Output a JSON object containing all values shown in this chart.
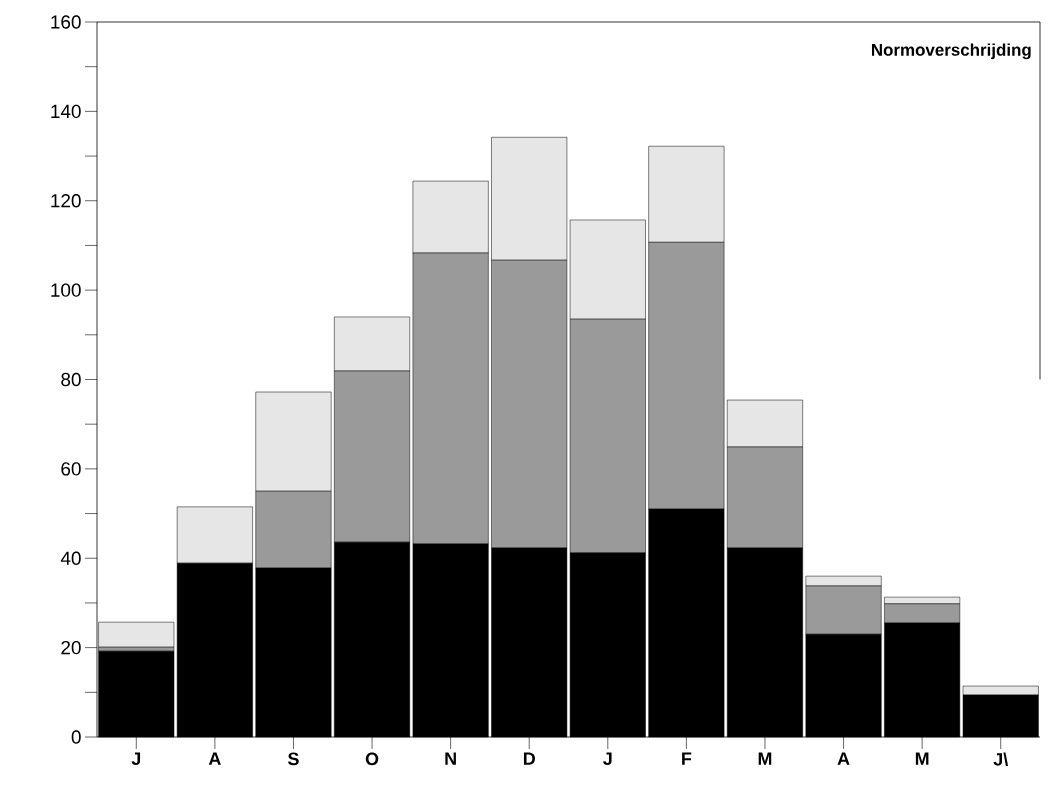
{
  "chart_data": {
    "type": "bar",
    "stacked": true,
    "categories": [
      "J",
      "A",
      "S",
      "O",
      "N",
      "D",
      "J",
      "F",
      "M",
      "A",
      "M",
      "J\\"
    ],
    "series": [
      {
        "color": "#000000",
        "values": [
          19.2,
          38.9,
          37.8,
          43.6,
          43.2,
          42.3,
          41.2,
          51.0,
          42.3,
          23.0,
          25.5,
          9.4
        ]
      },
      {
        "color": "#9a9a9a",
        "values": [
          0.9,
          0,
          17.2,
          38.3,
          65.1,
          64.4,
          52.3,
          59.7,
          22.6,
          10.8,
          4.3,
          0
        ]
      },
      {
        "color": "#e6e6e6",
        "values": [
          5.6,
          12.6,
          22.2,
          12.1,
          16.1,
          27.5,
          22.2,
          21.5,
          10.5,
          2.2,
          1.5,
          2.0
        ]
      }
    ],
    "ylim": [
      0,
      160
    ],
    "yticks": [
      0,
      {
        "value": 10,
        "label": null
      },
      20,
      {
        "value": 30,
        "label": null
      },
      40,
      {
        "value": 50,
        "label": null
      },
      60,
      {
        "value": 70,
        "label": null
      },
      80,
      {
        "value": 90,
        "label": null
      },
      100,
      {
        "value": 110,
        "label": null
      },
      120,
      {
        "value": 130,
        "label": null
      },
      140,
      {
        "value": 150,
        "label": null
      },
      160
    ],
    "annotations": [
      "Normoverschrijding"
    ]
  }
}
